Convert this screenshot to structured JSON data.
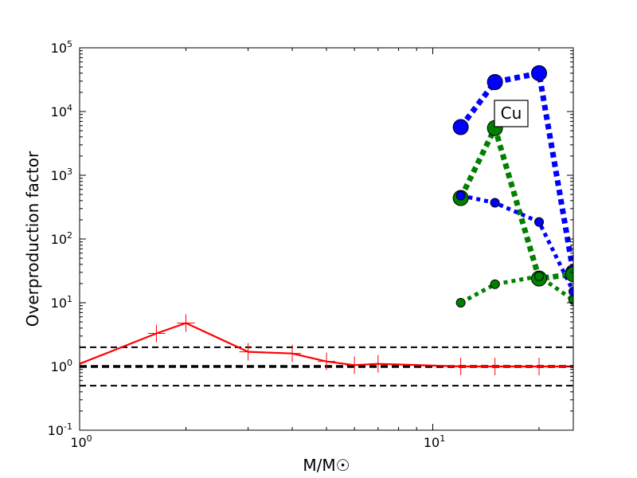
{
  "chart_data": {
    "type": "line",
    "xscale": "log",
    "yscale": "log",
    "xlim": [
      1,
      25
    ],
    "ylim": [
      0.1,
      100000
    ],
    "xlabel": "M/M☉",
    "ylabel": "Overproduction factor",
    "x_ticks": [
      {
        "value": 1,
        "base": "10",
        "exp": "0"
      },
      {
        "value": 10,
        "base": "10",
        "exp": "1"
      }
    ],
    "y_ticks": [
      {
        "value": 0.1,
        "base": "10",
        "exp": "-1"
      },
      {
        "value": 1,
        "base": "10",
        "exp": "0"
      },
      {
        "value": 10,
        "base": "10",
        "exp": "1"
      },
      {
        "value": 100,
        "base": "10",
        "exp": "2"
      },
      {
        "value": 1000,
        "base": "10",
        "exp": "3"
      },
      {
        "value": 10000,
        "base": "10",
        "exp": "4"
      },
      {
        "value": 100000,
        "base": "10",
        "exp": "5"
      }
    ],
    "annotation": "Cu",
    "reference_lines": [
      {
        "y": 2,
        "style": "dashed",
        "color": "#000000",
        "weight": "thin"
      },
      {
        "y": 1,
        "style": "dashed",
        "color": "#000000",
        "weight": "thick"
      },
      {
        "y": 0.5,
        "style": "dashed",
        "color": "#000000",
        "weight": "thin"
      }
    ],
    "series": [
      {
        "color": "#ff0000",
        "style": "solid",
        "marker": "plus",
        "x": [
          1,
          1.65,
          2,
          3,
          4,
          5,
          6,
          7,
          12,
          15,
          20,
          25
        ],
        "y": [
          1.1,
          3.3,
          4.8,
          1.7,
          1.6,
          1.2,
          1.05,
          1.1,
          1.0,
          1.0,
          1.0,
          1.0
        ],
        "marker_x": [
          1.65,
          2,
          3,
          4,
          5,
          6,
          7,
          12,
          15,
          20
        ]
      },
      {
        "color": "#0000ff",
        "style": "dotted",
        "weight": "thick",
        "marker": "circle-large",
        "x": [
          12,
          15,
          20,
          25
        ],
        "y": [
          5700,
          29000,
          40000,
          30
        ]
      },
      {
        "color": "#008000",
        "style": "dotted",
        "weight": "thick",
        "marker": "circle-large",
        "x": [
          12,
          15,
          20,
          25
        ],
        "y": [
          440,
          5500,
          24,
          28
        ]
      },
      {
        "color": "#0000ff",
        "style": "dotted",
        "weight": "medium",
        "marker": "circle-small",
        "x": [
          12,
          15,
          20,
          25
        ],
        "y": [
          480,
          370,
          185,
          15
        ]
      },
      {
        "color": "#008000",
        "style": "dotted",
        "weight": "medium",
        "marker": "circle-small",
        "x": [
          12,
          15,
          20,
          25
        ],
        "y": [
          10,
          19.5,
          26,
          11
        ]
      }
    ]
  }
}
